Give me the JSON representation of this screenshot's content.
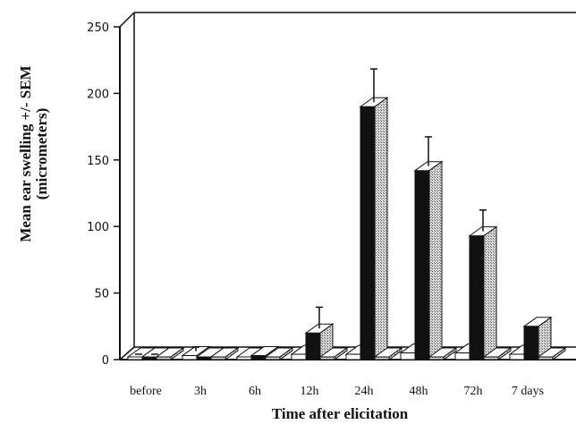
{
  "chart_data": {
    "type": "bar",
    "style": "3d-grouped",
    "title": "",
    "xlabel": "Time after elicitation",
    "ylabel_line1": "Mean ear swelling +/- SEM",
    "ylabel_line2": "(micrometers)",
    "ylim": [
      0,
      250
    ],
    "yticks": [
      "0",
      "50",
      "100",
      "150",
      "200",
      "250"
    ],
    "ytick_values": [
      0,
      50,
      100,
      150,
      200,
      250
    ],
    "categories": [
      "before",
      "3h",
      "6h",
      "12h",
      "24h",
      "48h",
      "72h",
      "7 days"
    ],
    "series": [
      {
        "values": [
          0,
          3,
          2,
          4,
          4,
          5,
          5,
          4
        ],
        "errors": [
          0,
          3,
          0,
          0,
          0,
          0,
          0,
          0
        ],
        "color": "#ffffff"
      },
      {
        "values": [
          0,
          0,
          3,
          20,
          190,
          142,
          93,
          25
        ],
        "errors": [
          0,
          0,
          0,
          16,
          25,
          22,
          16,
          0
        ],
        "color": "#111111"
      },
      {
        "values": [
          0,
          0,
          0,
          0,
          0,
          0,
          0,
          0
        ],
        "errors": [
          0,
          0,
          0,
          0,
          0,
          0,
          0,
          0
        ],
        "color": "#a8a8a8"
      }
    ],
    "grid": false,
    "legend": "none"
  }
}
